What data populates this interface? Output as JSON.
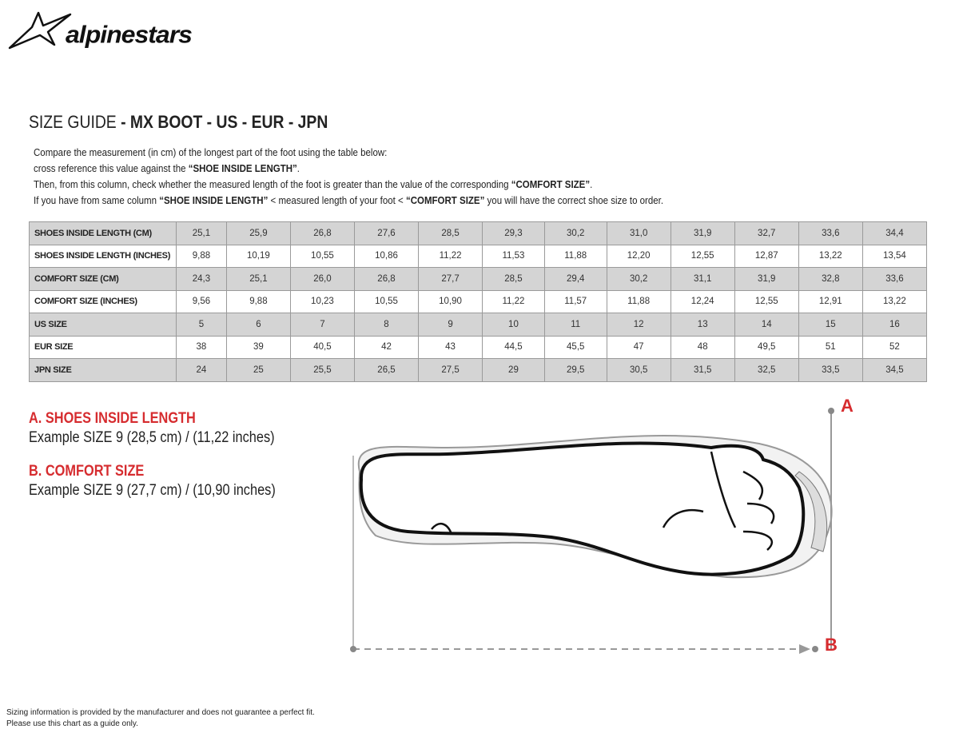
{
  "brand": {
    "logo_text": "alpinestars",
    "accent": "#d62c2f"
  },
  "title": {
    "prefix": "SIZE GUIDE",
    "suffix": " - MX BOOT - US - EUR - JPN"
  },
  "instructions": {
    "line1": "Compare the measurement (in cm) of the longest part of the foot using the table below:",
    "line2a": "cross reference this value against the ",
    "line2b": "“SHOE INSIDE LENGTH”",
    "line2c": ".",
    "line3a": "Then, from this column, check whether the measured length of the foot is greater than the value of the corresponding ",
    "line3b": "“COMFORT SIZE”",
    "line3c": ".",
    "line4a": "If you have from same column ",
    "line4b": "“SHOE INSIDE LENGTH”",
    "line4c": " <  measured length of your foot  < ",
    "line4d": "“COMFORT SIZE”",
    "line4e": " you will have the correct shoe size to order."
  },
  "table": {
    "rows": [
      {
        "label": "SHOES INSIDE LENGTH (CM)",
        "values": [
          "25,1",
          "25,9",
          "26,8",
          "27,6",
          "28,5",
          "29,3",
          "30,2",
          "31,0",
          "31,9",
          "32,7",
          "33,6",
          "34,4"
        ]
      },
      {
        "label": "SHOES INSIDE LENGTH (INCHES)",
        "values": [
          "9,88",
          "10,19",
          "10,55",
          "10,86",
          "11,22",
          "11,53",
          "11,88",
          "12,20",
          "12,55",
          "12,87",
          "13,22",
          "13,54"
        ]
      },
      {
        "label": "COMFORT SIZE (CM)",
        "values": [
          "24,3",
          "25,1",
          "26,0",
          "26,8",
          "27,7",
          "28,5",
          "29,4",
          "30,2",
          "31,1",
          "31,9",
          "32,8",
          "33,6"
        ]
      },
      {
        "label": "COMFORT SIZE (INCHES)",
        "values": [
          "9,56",
          "9,88",
          "10,23",
          "10,55",
          "10,90",
          "11,22",
          "11,57",
          "11,88",
          "12,24",
          "12,55",
          "12,91",
          "13,22"
        ]
      },
      {
        "label": "US SIZE",
        "values": [
          "5",
          "6",
          "7",
          "8",
          "9",
          "10",
          "11",
          "12",
          "13",
          "14",
          "15",
          "16"
        ]
      },
      {
        "label": "EUR SIZE",
        "values": [
          "38",
          "39",
          "40,5",
          "42",
          "43",
          "44,5",
          "45,5",
          "47",
          "48",
          "49,5",
          "51",
          "52"
        ]
      },
      {
        "label": "JPN SIZE",
        "values": [
          "24",
          "25",
          "25,5",
          "26,5",
          "27,5",
          "29",
          "29,5",
          "30,5",
          "31,5",
          "32,5",
          "33,5",
          "34,5"
        ]
      }
    ]
  },
  "section_a": {
    "heading": "A. SHOES INSIDE LENGTH",
    "example": "Example SIZE 9 (28,5 cm) / (11,22 inches)"
  },
  "section_b": {
    "heading": "B. COMFORT SIZE",
    "example": "Example SIZE 9 (27,7 cm) / (10,90 inches)"
  },
  "diagram": {
    "label_a": "A",
    "label_b": "B"
  },
  "footer": {
    "line1": "Sizing information is provided by the manufacturer and does not guarantee a perfect fit.",
    "line2": "Please use this chart as a guide only."
  }
}
